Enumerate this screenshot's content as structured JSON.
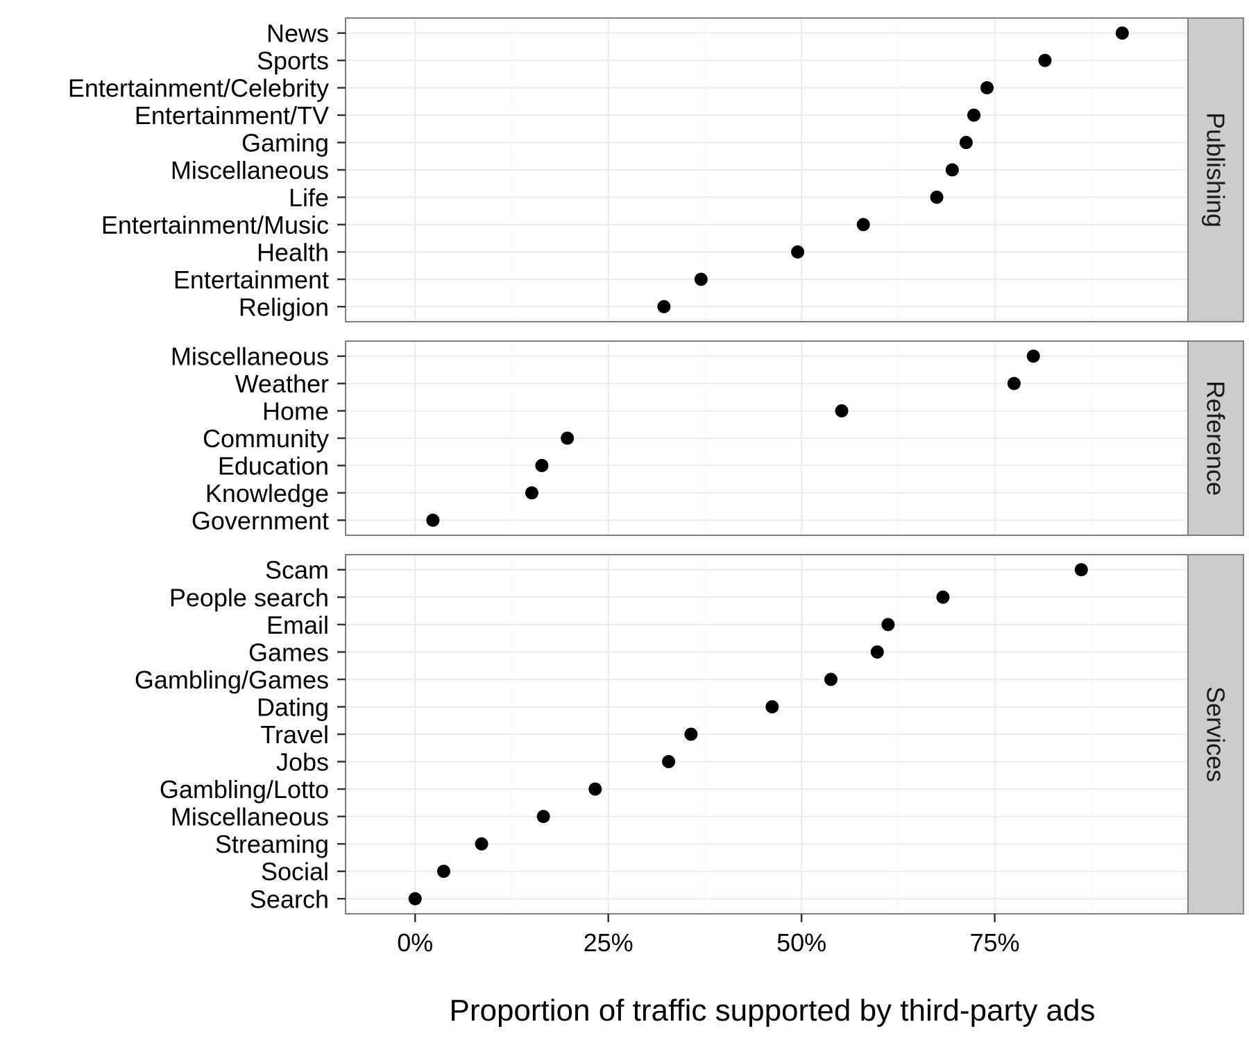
{
  "chart_data": {
    "type": "scatter",
    "xlabel": "Proportion of traffic supported by third-party ads",
    "ylabel": "",
    "xlim": [
      -0.09,
      1.0
    ],
    "x_ticks": [
      0,
      0.25,
      0.5,
      0.75
    ],
    "x_tick_labels": [
      "0%",
      "25%",
      "50%",
      "75%"
    ],
    "grid": true,
    "facets": [
      {
        "name": "Publishing",
        "categories": [
          "News",
          "Sports",
          "Entertainment/Celebrity",
          "Entertainment/TV",
          "Gaming",
          "Miscellaneous",
          "Life",
          "Entertainment/Music",
          "Health",
          "Entertainment",
          "Religion"
        ],
        "values": [
          0.915,
          0.815,
          0.74,
          0.723,
          0.713,
          0.695,
          0.675,
          0.58,
          0.495,
          0.37,
          0.322
        ]
      },
      {
        "name": "Reference",
        "categories": [
          "Miscellaneous",
          "Weather",
          "Home",
          "Community",
          "Education",
          "Knowledge",
          "Government"
        ],
        "values": [
          0.8,
          0.775,
          0.552,
          0.197,
          0.164,
          0.151,
          0.023
        ]
      },
      {
        "name": "Services",
        "categories": [
          "Scam",
          "People search",
          "Email",
          "Games",
          "Gambling/Games",
          "Dating",
          "Travel",
          "Jobs",
          "Gambling/Lotto",
          "Miscellaneous",
          "Streaming",
          "Social",
          "Search"
        ],
        "values": [
          0.862,
          0.683,
          0.612,
          0.598,
          0.538,
          0.462,
          0.357,
          0.328,
          0.233,
          0.166,
          0.086,
          0.037,
          0.0
        ]
      }
    ]
  },
  "colors": {
    "point": "#000000",
    "panel_border": "#7f7f7f",
    "grid_major": "#ebebeb",
    "grid_minor": "#f4f4f4",
    "strip_fill": "#cccccc",
    "strip_border": "#7f7f7f",
    "axis_tick": "#333333"
  }
}
